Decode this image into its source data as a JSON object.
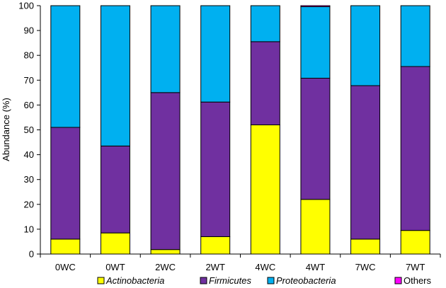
{
  "chart_data": {
    "type": "bar",
    "stacked": true,
    "title": "",
    "xlabel": "",
    "ylabel": "Abundance (%)",
    "ylim": [
      0,
      100
    ],
    "yticks": [
      0,
      10,
      20,
      30,
      40,
      50,
      60,
      70,
      80,
      90,
      100
    ],
    "categories": [
      "0WC",
      "0WT",
      "2WC",
      "2WT",
      "4WC",
      "4WT",
      "7WC",
      "7WT"
    ],
    "series": [
      {
        "name": "Actinobacteria",
        "italic": true,
        "color": "#ffff00",
        "values": [
          6,
          8.5,
          1.8,
          7,
          52,
          22,
          6,
          9.5
        ]
      },
      {
        "name": "Firmicutes",
        "italic": true,
        "color": "#7030a0",
        "values": [
          45,
          35,
          63.2,
          54.2,
          33.5,
          48.8,
          61.8,
          66
        ]
      },
      {
        "name": "Proteobacteria",
        "italic": true,
        "color": "#00b0f0",
        "values": [
          49,
          56.5,
          35,
          38.8,
          14.5,
          28.8,
          32.2,
          24.5
        ]
      },
      {
        "name": "Others",
        "italic": false,
        "color": "#ff00ff",
        "values": [
          0,
          0,
          0,
          0,
          0,
          0.4,
          0,
          0
        ]
      }
    ],
    "legend_position": "bottom"
  }
}
